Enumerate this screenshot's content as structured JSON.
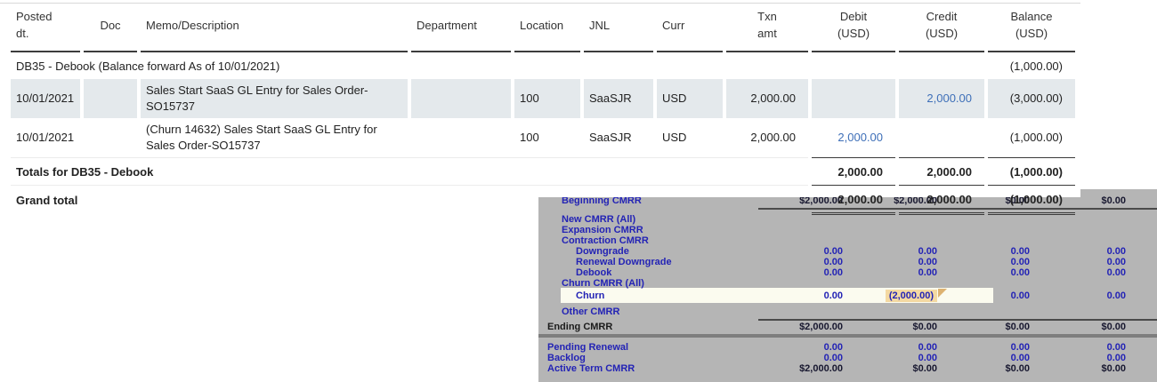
{
  "gl": {
    "columns": [
      "Posted\ndt.",
      "Doc",
      "Memo/Description",
      "Department",
      "Location",
      "JNL",
      "Curr",
      "Txn\namt",
      "Debit\n(USD)",
      "Credit\n(USD)",
      "Balance\n(USD)"
    ],
    "balance_forward": {
      "label": "DB35 - Debook (Balance forward As of 10/01/2021)",
      "balance": "(1,000.00)"
    },
    "rows": [
      {
        "posted": "10/01/2021",
        "doc": "",
        "memo": "Sales Start SaaS GL Entry for Sales Order-SO15737",
        "department": "",
        "location": "100",
        "jnl": "SaaSJR",
        "curr": "USD",
        "txn": "2,000.00",
        "debit": "",
        "credit": "2,000.00",
        "balance": "(3,000.00)"
      },
      {
        "posted": "10/01/2021",
        "doc": "",
        "memo": "(Churn 14632) Sales Start SaaS GL Entry for Sales Order-SO15737",
        "department": "",
        "location": "100",
        "jnl": "SaaSJR",
        "curr": "USD",
        "txn": "2,000.00",
        "debit": "2,000.00",
        "credit": "",
        "balance": "(1,000.00)"
      }
    ],
    "totals": {
      "label": "Totals for DB35 - Debook",
      "debit": "2,000.00",
      "credit": "2,000.00",
      "balance": "(1,000.00)"
    },
    "grand": {
      "label": "Grand total",
      "debit": "2,000.00",
      "credit": "2,000.00",
      "balance": "(1,000.00)"
    }
  },
  "cmrr": {
    "rows": [
      {
        "label": "Beginning CMRR",
        "values": [
          "$2,000.00",
          "$2,000.00",
          "$0.00",
          "$0.00"
        ]
      },
      {
        "label": "New CMRR (All)"
      },
      {
        "label": "Expansion CMRR"
      },
      {
        "label": "Contraction CMRR"
      },
      {
        "label": "Downgrade",
        "values": [
          "0.00",
          "0.00",
          "0.00",
          "0.00"
        ]
      },
      {
        "label": "Renewal Downgrade",
        "values": [
          "0.00",
          "0.00",
          "0.00",
          "0.00"
        ]
      },
      {
        "label": "Debook",
        "values": [
          "0.00",
          "0.00",
          "0.00",
          "0.00"
        ]
      },
      {
        "label": "Churn CMRR (All)"
      },
      {
        "label": "Churn",
        "values": [
          "0.00",
          "(2,000.00)",
          "0.00",
          "0.00"
        ]
      },
      {
        "label": "Other CMRR"
      },
      {
        "label": "Ending CMRR",
        "values": [
          "$2,000.00",
          "$0.00",
          "$0.00",
          "$0.00"
        ]
      },
      {
        "label": "Pending Renewal",
        "values": [
          "0.00",
          "0.00",
          "0.00",
          "0.00"
        ]
      },
      {
        "label": "Backlog",
        "values": [
          "0.00",
          "0.00",
          "0.00",
          "0.00"
        ]
      },
      {
        "label": "Active Term CMRR",
        "values": [
          "$2,000.00",
          "$0.00",
          "$0.00",
          "$0.00"
        ]
      }
    ]
  },
  "colors": {
    "row_shade": "#e4e9ec",
    "amount_link_blue": "#3e6fb8",
    "cmrr_panel_gray": "#b5b5b5",
    "cmrr_blue": "#2323b5",
    "cmrr_dark": "#17172f",
    "churn_highlight_tan": "#f4d9a2",
    "churn_row_band": "#fbfbef"
  }
}
